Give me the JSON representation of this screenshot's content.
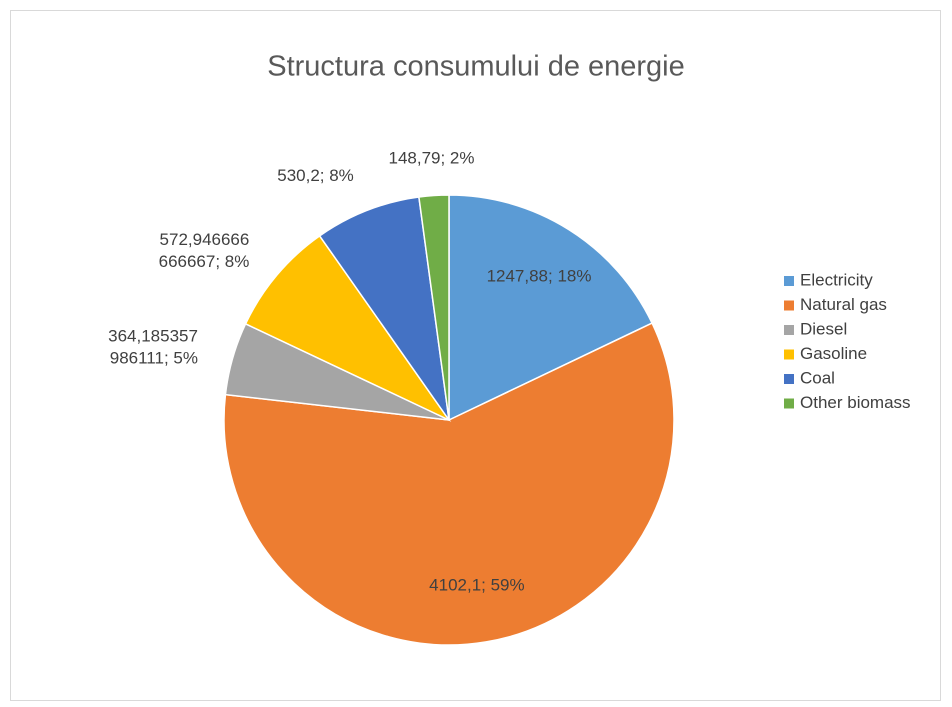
{
  "chart_data": {
    "type": "pie",
    "title": "Structura consumului de energie",
    "categories": [
      "Electricity",
      "Natural gas",
      "Diesel",
      "Gasoline",
      "Coal",
      "Other biomass"
    ],
    "values": [
      1247.88,
      4102.1,
      364.185357986111,
      572.946666666667,
      530.2,
      148.79
    ],
    "value_labels": [
      [
        "1247,88; 18%"
      ],
      [
        "4102,1; 59%"
      ],
      [
        "364,185357",
        "986111; 5%"
      ],
      [
        "572,946666",
        "666667; 8%"
      ],
      [
        "530,2; 8%"
      ],
      [
        "148,79; 2%"
      ]
    ],
    "colors": [
      "#5b9bd5",
      "#ed7d31",
      "#a5a5a5",
      "#ffc000",
      "#4472c4",
      "#70ad47"
    ],
    "legend": "right"
  }
}
